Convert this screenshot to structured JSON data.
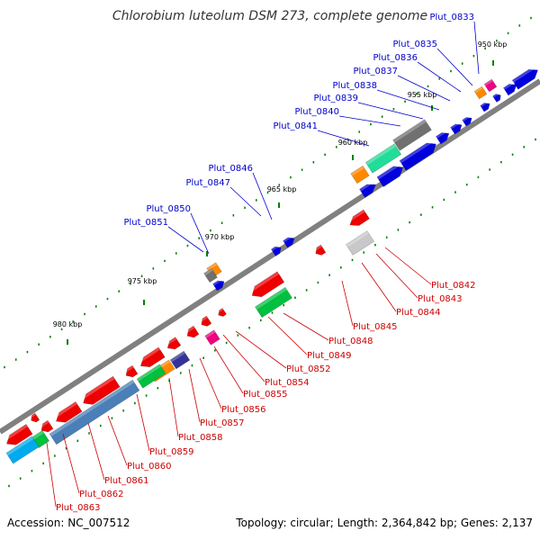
{
  "title": "Chlorobium luteolum DSM 273, complete genome",
  "footer": {
    "accession": "Accession: NC_007512",
    "topology": "Topology: circular; Length: 2,364,842 bp; Genes: 2,137"
  },
  "colors": {
    "forward_label": "#0000cc",
    "reverse_label": "#cc0000",
    "backbone": "#808080",
    "tick": "#008000"
  },
  "kbp_labels": [
    "950 kbp",
    "955 kbp",
    "960 kbp",
    "965 kbp",
    "970 kbp",
    "975 kbp",
    "980 kbp"
  ],
  "top_labels": [
    "Plut_0833",
    "Plut_0835",
    "Plut_0836",
    "Plut_0837",
    "Plut_0838",
    "Plut_0839",
    "Plut_0840",
    "Plut_0841",
    "Plut_0846",
    "Plut_0847",
    "Plut_0850",
    "Plut_0851"
  ],
  "bottom_labels": [
    "Plut_0842",
    "Plut_0843",
    "Plut_0844",
    "Plut_0845",
    "Plut_0848",
    "Plut_0849",
    "Plut_0852",
    "Plut_0854",
    "Plut_0855",
    "Plut_0856",
    "Plut_0857",
    "Plut_0858",
    "Plut_0859",
    "Plut_0860",
    "Plut_0861",
    "Plut_0862",
    "Plut_0863"
  ]
}
